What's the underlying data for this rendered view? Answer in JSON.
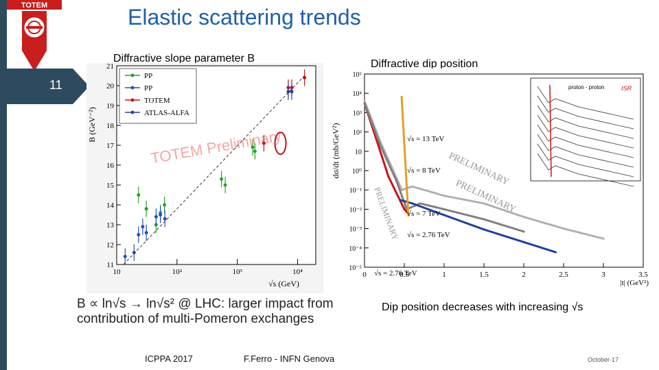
{
  "slide": {
    "title": "Elastic scattering trends",
    "number": "11",
    "logo_text": "TOTEM",
    "footer_conference": "ICPPA 2017",
    "footer_author": "F.Ferro - INFN Genova",
    "footer_date": "October-17"
  },
  "left_panel": {
    "label": "Diffractive slope parameter B",
    "caption_line1": "B ∝ ln√s → ln√s² @ LHC: larger impact from",
    "caption_line2": "contribution of multi-Pomeron exchanges"
  },
  "right_panel": {
    "label": "Diffractive dip position",
    "caption": "Dip position decreases with increasing √s"
  },
  "chart_data": [
    {
      "type": "scatter",
      "xlabel": "√s   (GeV)",
      "ylabel": "B   (GeV⁻²)",
      "x_scale": "log",
      "xlim": [
        10,
        20000
      ],
      "ylim": [
        11,
        21
      ],
      "x_ticks": [
        "10",
        "10²",
        "10³",
        "10⁴"
      ],
      "y_ticks": [
        "11",
        "12",
        "13",
        "14",
        "15",
        "16",
        "17",
        "18",
        "19",
        "20",
        "21"
      ],
      "watermark": "TOTEM Preliminary",
      "legend": [
        "PP",
        "PP",
        "TOTEM",
        "ATLAS-ALFA"
      ],
      "legend_placement": "top-left",
      "series": [
        {
          "name": "PP",
          "color": "#2aa02a",
          "x": [
            23,
            31,
            45,
            53,
            62,
            546,
            630,
            1800,
            1960
          ],
          "y": [
            14.5,
            13.8,
            13.0,
            13.6,
            14.0,
            15.3,
            15.0,
            16.9,
            16.7
          ]
        },
        {
          "name": "PP",
          "color": "#2050c0",
          "x": [
            13.8,
            19.4,
            23,
            27,
            31,
            45,
            53,
            63
          ],
          "y": [
            11.4,
            11.6,
            12.5,
            12.9,
            12.6,
            13.4,
            13.5,
            13.3
          ]
        },
        {
          "name": "TOTEM",
          "color": "#d01010",
          "x": [
            2760,
            7000,
            8000,
            13000
          ],
          "y": [
            17.1,
            19.9,
            19.9,
            20.4
          ]
        },
        {
          "name": "ATLAS-ALFA",
          "color": "#2a40a0",
          "x": [
            7000,
            8000
          ],
          "y": [
            19.7,
            19.7
          ]
        }
      ]
    },
    {
      "type": "line",
      "xlabel": "|t|   (GeV²)",
      "ylabel": "dσ/dt   (mb/GeV²)",
      "y_scale": "log",
      "xlim": [
        0,
        3.5
      ],
      "ylim": [
        1e-05,
        100000
      ],
      "x_ticks": [
        "0",
        "0.5",
        "1",
        "1.5",
        "2",
        "2.5",
        "3",
        "3.5"
      ],
      "y_ticks": [
        "10⁵",
        "10⁴",
        "10³",
        "10²",
        "10",
        "10⁰",
        "10⁻¹",
        "10⁻²",
        "10⁻³",
        "10⁻⁴",
        "10⁻⁵"
      ],
      "watermark": "PRELIMINARY",
      "annotations": [
        "√s = 13 TeV",
        "√s = 8 TeV",
        "√s = 7 TeV",
        "√s = 2.76 TeV",
        "√s = 2.76 TeV"
      ],
      "inset": {
        "title": "proton - proton",
        "tag": "ISR"
      },
      "series": [
        {
          "name": "√s = 13 TeV",
          "color": "#b0b0b0",
          "t": [
            0.0,
            0.2,
            0.47,
            0.6,
            1.0,
            1.5,
            2.0,
            2.5,
            3.0
          ],
          "y": [
            4000,
            30,
            0.1,
            0.15,
            0.05,
            0.02,
            0.004,
            0.001,
            0.0003
          ]
        },
        {
          "name": "√s = 8 TeV",
          "color": "#d01010",
          "t": [
            0.0,
            0.15,
            0.3,
            0.5,
            0.55
          ],
          "y": [
            3000,
            40,
            0.5,
            0.01,
            0.006
          ]
        },
        {
          "name": "√s = 7 TeV",
          "color": "#808080",
          "t": [
            0.0,
            0.2,
            0.4,
            0.53,
            0.7,
            1.0,
            1.5,
            2.0
          ],
          "y": [
            3000,
            20,
            0.3,
            0.01,
            0.02,
            0.01,
            0.003,
            0.0007
          ]
        },
        {
          "name": "√s = 2.76 TeV",
          "color": "#2040a0",
          "t": [
            0.45,
            0.6,
            1.0,
            1.5,
            2.0,
            2.4
          ],
          "y": [
            0.03,
            0.02,
            0.005,
            0.0009,
            0.0002,
            6e-05
          ]
        }
      ]
    }
  ]
}
